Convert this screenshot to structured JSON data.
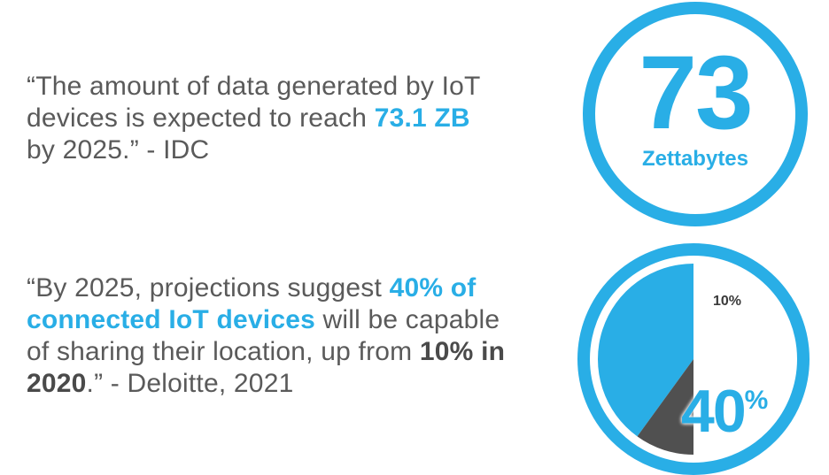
{
  "quote1": {
    "prefix": "“The amount of data generated by IoT devices is expected to reach ",
    "highlight": "73.1 ZB",
    "suffix": " by 2025.” - IDC"
  },
  "quote2": {
    "prefix": "“By 2025, projections suggest ",
    "highlight": "40% of connected IoT devices",
    "middle": " will be capable of sharing their location, up from ",
    "bold": "10% in 2020",
    "suffix": ".” - Deloitte, 2021"
  },
  "stat1": {
    "number": "73",
    "unit": "Zettabytes"
  },
  "stat2": {
    "small_label": "10%",
    "big_label": "40",
    "big_label_suffix": "%"
  },
  "chart_data": {
    "type": "pie",
    "series": [
      {
        "values": [
          40,
          10
        ]
      }
    ],
    "categories": [
      "",
      ""
    ],
    "slice_labels": [
      "40%",
      "10%"
    ],
    "colors": [
      "#29aee6",
      "#505050"
    ]
  },
  "colors": {
    "accent": "#29aee6",
    "text": "#5a5a5a",
    "dark_slice": "#505050"
  }
}
